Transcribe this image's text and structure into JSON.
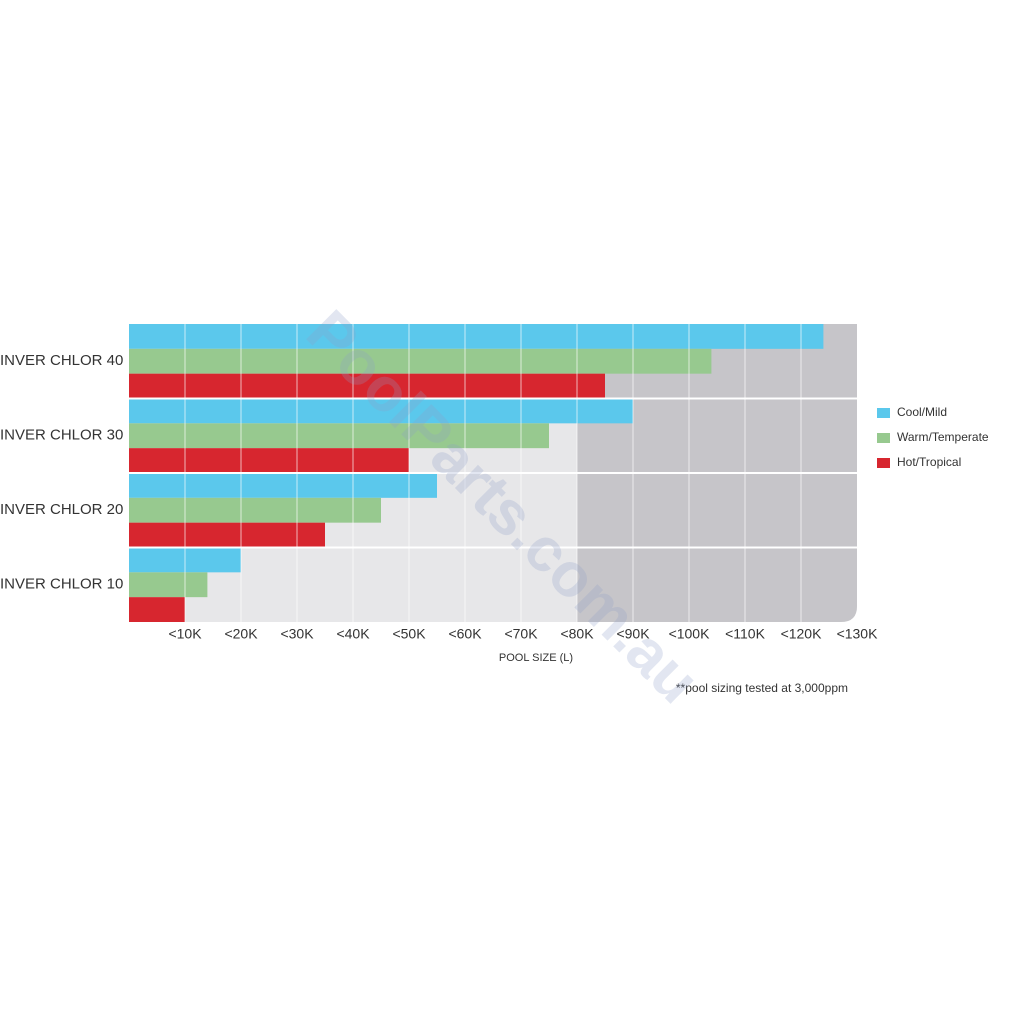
{
  "chart_data": {
    "type": "barh",
    "categories": [
      "INVER CHLOR 40",
      "INVER CHLOR 30",
      "INVER CHLOR 20",
      "INVER CHLOR 10"
    ],
    "series": [
      {
        "name": "Cool/Mild",
        "color": "#5bc8ec",
        "values": [
          124000,
          90000,
          55000,
          20000
        ]
      },
      {
        "name": "Warm/Temperate",
        "color": "#97c98f",
        "values": [
          104000,
          75000,
          45000,
          14000
        ]
      },
      {
        "name": "Hot/Tropical",
        "color": "#d7262f",
        "values": [
          85000,
          50000,
          35000,
          10000
        ]
      }
    ],
    "xlim": [
      0,
      130000
    ],
    "xticks": [
      {
        "value": 10000,
        "label": "<10K"
      },
      {
        "value": 20000,
        "label": "<20K"
      },
      {
        "value": 30000,
        "label": "<30K"
      },
      {
        "value": 40000,
        "label": "<40K"
      },
      {
        "value": 50000,
        "label": "<50K"
      },
      {
        "value": 60000,
        "label": "<60K"
      },
      {
        "value": 70000,
        "label": "<70K"
      },
      {
        "value": 80000,
        "label": "<80K"
      },
      {
        "value": 90000,
        "label": "<90K"
      },
      {
        "value": 100000,
        "label": "<100K"
      },
      {
        "value": 110000,
        "label": "<110K"
      },
      {
        "value": 120000,
        "label": "<120K"
      },
      {
        "value": 130000,
        "label": "<130K"
      }
    ],
    "shaded_region": [
      80000,
      130000
    ],
    "grid": true,
    "xlabel": "POOL SIZE (L)",
    "note": "**pool sizing tested at 3,000ppm",
    "watermark": "PoolParts.com.au",
    "legend": "right"
  }
}
